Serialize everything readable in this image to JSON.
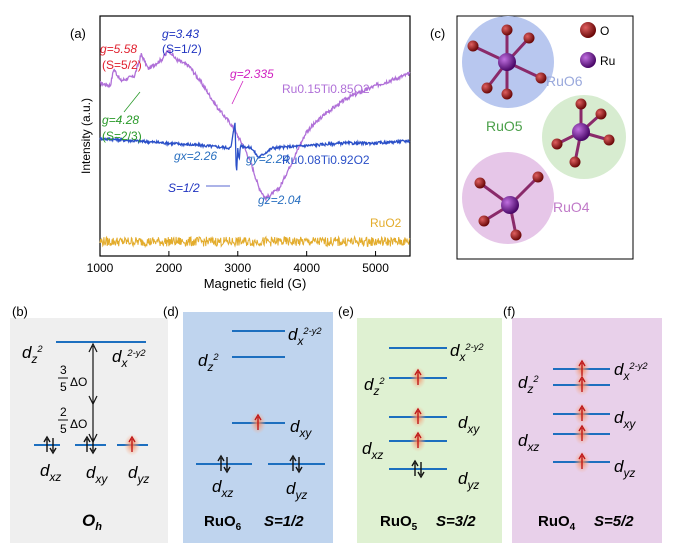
{
  "chart_data": {
    "type": "line",
    "panel_label": "(a)",
    "xlabel": "Magnetic field (G)",
    "ylabel": "Intensity (a.u.)",
    "xlim": [
      1000,
      5500
    ],
    "xticks": [
      1000,
      2000,
      3000,
      4000,
      5000
    ],
    "series": [
      {
        "name": "Ru0.15Ti0.85O2",
        "color": "#b070d8",
        "x": [
          1000,
          1150,
          1200,
          1300,
          1500,
          1600,
          1700,
          1900,
          2000,
          2100,
          2300,
          2500,
          2700,
          2900,
          3000,
          3100,
          3200,
          3300,
          3400,
          3600,
          3800,
          4000,
          4300,
          4600,
          5000,
          5500
        ],
        "y": [
          0.72,
          0.71,
          0.78,
          0.73,
          0.75,
          0.84,
          0.78,
          0.82,
          0.86,
          0.82,
          0.79,
          0.71,
          0.62,
          0.55,
          0.5,
          0.45,
          0.38,
          0.29,
          0.24,
          0.28,
          0.4,
          0.52,
          0.6,
          0.66,
          0.71,
          0.76
        ]
      },
      {
        "name": "Ru0.08Ti0.92O2",
        "color": "#2b50c8",
        "x": [
          1000,
          1500,
          2000,
          2500,
          2900,
          2960,
          2980,
          3000,
          3020,
          3040,
          3200,
          3300,
          3500,
          4000,
          4500,
          5000,
          5500
        ],
        "y": [
          0.49,
          0.48,
          0.47,
          0.46,
          0.45,
          0.56,
          0.33,
          0.45,
          0.4,
          0.46,
          0.45,
          0.41,
          0.45,
          0.46,
          0.47,
          0.47,
          0.48
        ]
      },
      {
        "name": "RuO2",
        "color": "#e3ac2c",
        "x": [
          1000,
          5500
        ],
        "y": [
          0.06,
          0.06
        ]
      }
    ],
    "annotations": {
      "g558": "g=5.58",
      "s52": "(S=5/2)",
      "g428": "g=4.28",
      "s23": "(S=2/3)",
      "g343": "g=3.43",
      "s12": "(S=1/2)",
      "g2335": "g=2.335",
      "gx": "gx=2.26",
      "gy": "gy=2.24",
      "gz": "gz=2.04",
      "s12b": "S=1/2"
    },
    "legend_rutio15": "Ru0.15Ti0.85O2",
    "legend_rutio08": "Ru0.08Ti0.92O2",
    "legend_ruo2": "RuO2"
  },
  "panel_c": {
    "label": "(c)",
    "legend_o": "O",
    "legend_ru": "Ru",
    "ruo6": "RuO6",
    "ruo5": "RuO5",
    "ruo4": "RuO4",
    "colors": {
      "o": "#8a1010",
      "ru": "#6a1088",
      "bond": "#8a2a6a"
    }
  },
  "panels_bottom": {
    "b": {
      "label": "(b)",
      "title": "Oh",
      "orbitals": [
        "dz2",
        "dx2-y2",
        "dxz",
        "dxy",
        "dyz"
      ],
      "split_top": "3/5 ΔO",
      "split_bottom": "2/5 ΔO"
    },
    "d": {
      "label": "(d)",
      "name": "RuO6",
      "spin": "S=1/2",
      "orbitals": [
        "dx2-y2",
        "dz2",
        "dxy",
        "dxz",
        "dyz"
      ]
    },
    "e": {
      "label": "(e)",
      "name": "RuO5",
      "spin": "S=3/2",
      "orbitals": [
        "dx2-y2",
        "dz2",
        "dxy",
        "dxz",
        "dyz"
      ]
    },
    "f": {
      "label": "(f)",
      "name": "RuO4",
      "spin": "S=5/2",
      "orbitals": [
        "dx2-y2",
        "dz2",
        "dxy",
        "dxz",
        "dyz"
      ]
    },
    "colors": {
      "d_bg": "#bcd3ec",
      "e_bg": "#dcefcf",
      "f_bg": "#e4cde6",
      "b_bg": "#ededed",
      "level": "#1d6fbf",
      "arrow": "#c01818",
      "glow": "#f4a070"
    }
  }
}
